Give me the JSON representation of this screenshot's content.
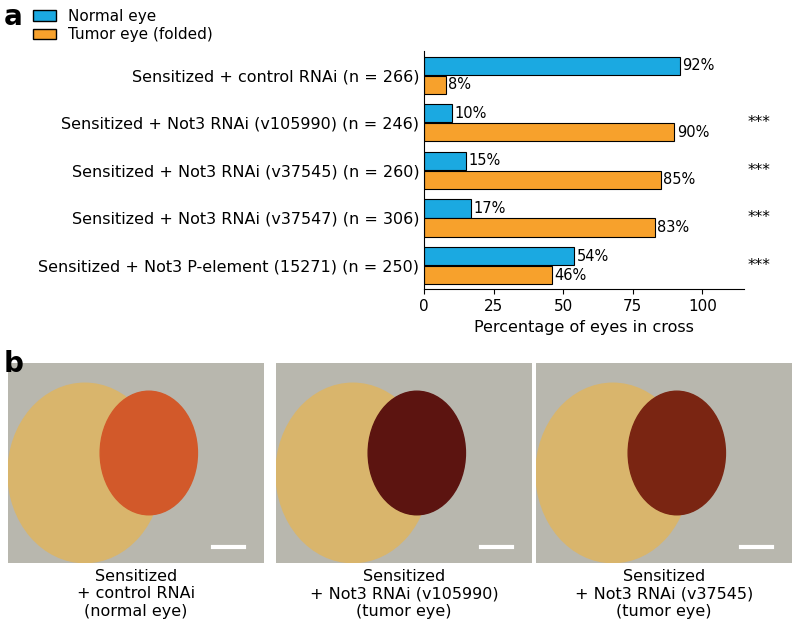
{
  "panels": [
    "a",
    "b"
  ],
  "chart_data": {
    "type": "bar",
    "orientation": "horizontal",
    "categories": [
      "Sensitized + control RNAi (n = 266)",
      "Sensitized + Not3 RNAi (v105990) (n = 246)",
      "Sensitized + Not3 RNAi (v37545) (n = 260)",
      "Sensitized + Not3 RNAi (v37547) (n = 306)",
      "Sensitized + Not3 P-element (15271) (n = 250)"
    ],
    "series": [
      {
        "name": "Normal eye",
        "color": "#1ba9e1",
        "values": [
          92,
          10,
          15,
          17,
          54
        ],
        "value_labels": [
          "92%",
          "10%",
          "15%",
          "17%",
          "54%"
        ]
      },
      {
        "name": "Tumor eye (folded)",
        "color": "#f7a12c",
        "values": [
          8,
          90,
          85,
          83,
          46
        ],
        "value_labels": [
          "8%",
          "90%",
          "85%",
          "83%",
          "46%"
        ]
      }
    ],
    "annotations": [
      null,
      "***",
      "***",
      "***",
      "***"
    ],
    "x_label": "Percentage of eyes in cross",
    "xlim": [
      0,
      115
    ],
    "xticks": [
      0,
      25,
      50,
      75,
      100
    ],
    "legend": "upper left",
    "data_labels": true,
    "grid": false
  },
  "photos": {
    "captions": [
      "Sensitized\n+ control RNAi\n(normal eye)",
      "Sensitized\n+ Not3 RNAi (v105990)\n(tumor eye)",
      "Sensitized\n+ Not3 RNAi (v37545)\n(tumor eye)"
    ]
  }
}
